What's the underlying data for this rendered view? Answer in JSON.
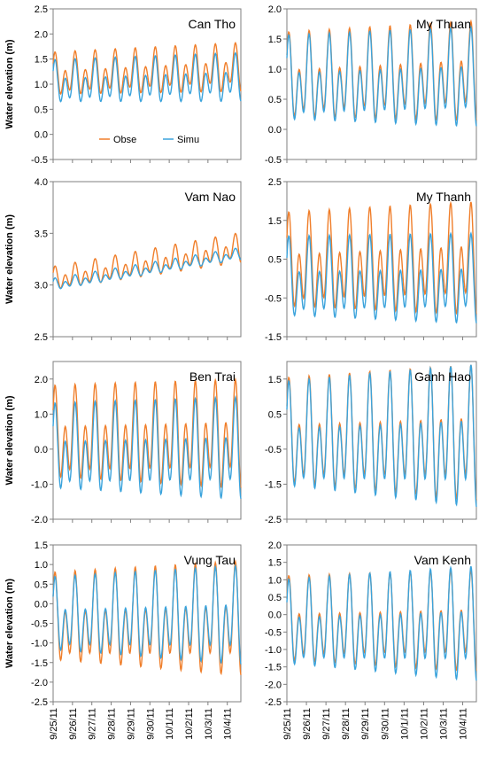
{
  "colors": {
    "obse": "#F07E2A",
    "simu": "#3AA3DC",
    "frame": "#7f7f7f"
  },
  "x_tick_labels": [
    "9/25/11",
    "9/26/11",
    "9/27/11",
    "9/28/11",
    "9/29/11",
    "9/30/11",
    "10/1/11",
    "10/2/11",
    "10/3/11",
    "10/4/11"
  ],
  "y_axis_label": "Water elevation (m)",
  "chart_data": [
    {
      "type": "line",
      "title": "Can Tho",
      "ylabel": "Water elevation (m)",
      "ylim": [
        -0.5,
        2.5
      ],
      "yticks": [
        "2.5",
        "2.0",
        "1.5",
        "1.0",
        "0.5",
        "0.0",
        "-0.5"
      ],
      "legend": "inside-bottom-left",
      "series": [
        {
          "name": "Obse",
          "mean_start": 1.15,
          "mean_end": 1.3,
          "amp_start": 0.45,
          "amp_end": 0.5
        },
        {
          "name": "Simu",
          "mean_start": 1.0,
          "mean_end": 1.1,
          "amp_start": 0.45,
          "amp_end": 0.5
        }
      ]
    },
    {
      "type": "line",
      "title": "My Thuan",
      "ylabel": "",
      "ylim": [
        -0.5,
        2.0
      ],
      "yticks": [
        "2.0",
        "1.5",
        "1.0",
        "0.5",
        "0.0",
        "-0.5"
      ],
      "series": [
        {
          "name": "Obse",
          "mean_start": 0.8,
          "mean_end": 0.9,
          "amp_start": 0.75,
          "amp_end": 0.85
        },
        {
          "name": "Simu",
          "mean_start": 0.75,
          "mean_end": 0.8,
          "amp_start": 0.75,
          "amp_end": 0.85
        }
      ]
    },
    {
      "type": "line",
      "title": "Vam Nao",
      "ylabel": "Water elevation (m)",
      "ylim": [
        2.5,
        4.0
      ],
      "yticks": [
        "4.0",
        "3.5",
        "3.0",
        "2.5"
      ],
      "series": [
        {
          "name": "Obse",
          "mean_start": 3.05,
          "mean_end": 3.35,
          "amp_start": 0.12,
          "amp_end": 0.15
        },
        {
          "name": "Simu",
          "mean_start": 3.0,
          "mean_end": 3.3,
          "amp_start": 0.06,
          "amp_end": 0.06
        }
      ]
    },
    {
      "type": "line",
      "title": "My Thanh",
      "ylabel": "",
      "ylim": [
        -1.5,
        2.5
      ],
      "yticks": [
        "2.5",
        "1.5",
        "0.5",
        "-0.5",
        "-1.5"
      ],
      "series": [
        {
          "name": "Obse",
          "mean_start": 0.3,
          "mean_end": 0.4,
          "amp_start": 1.3,
          "amp_end": 1.5
        },
        {
          "name": "Simu",
          "mean_start": -0.1,
          "mean_end": -0.1,
          "amp_start": 1.1,
          "amp_end": 1.2
        }
      ]
    },
    {
      "type": "line",
      "title": "Ben Trai",
      "ylabel": "Water elevation (m)",
      "ylim": [
        -2.0,
        2.5
      ],
      "yticks": [
        "2.0",
        "1.0",
        "0.0",
        "-1.0",
        "-2.0"
      ],
      "series": [
        {
          "name": "Obse",
          "mean_start": 0.3,
          "mean_end": 0.3,
          "amp_start": 1.4,
          "amp_end": 1.6
        },
        {
          "name": "Simu",
          "mean_start": -0.1,
          "mean_end": -0.1,
          "amp_start": 1.3,
          "amp_end": 1.5
        }
      ]
    },
    {
      "type": "line",
      "title": "Ganh Hao",
      "ylabel": "",
      "ylim": [
        -2.5,
        2.0
      ],
      "yticks": [
        "1.5",
        "0.5",
        "-0.5",
        "-1.5",
        "-2.5"
      ],
      "series": [
        {
          "name": "Obse",
          "mean_start": -0.2,
          "mean_end": -0.2,
          "amp_start": 1.6,
          "amp_end": 2.0
        },
        {
          "name": "Simu",
          "mean_start": -0.3,
          "mean_end": -0.3,
          "amp_start": 1.6,
          "amp_end": 2.1
        }
      ]
    },
    {
      "type": "line",
      "title": "Vung Tau",
      "ylabel": "Water elevation (m)",
      "ylim": [
        -2.5,
        1.5
      ],
      "yticks": [
        "1.5",
        "1.0",
        "0.5",
        "0.0",
        "-0.5",
        "-1.0",
        "-1.5",
        "-2.0",
        "-2.5"
      ],
      "series": [
        {
          "name": "Obse",
          "mean_start": -0.5,
          "mean_end": -0.5,
          "amp_start": 1.2,
          "amp_end": 1.5
        },
        {
          "name": "Simu",
          "mean_start": -0.4,
          "mean_end": -0.4,
          "amp_start": 1.0,
          "amp_end": 1.3
        }
      ]
    },
    {
      "type": "line",
      "title": "Vam Kenh",
      "ylabel": "",
      "ylim": [
        -2.5,
        2.0
      ],
      "yticks": [
        "2.0",
        "1.5",
        "1.0",
        "0.5",
        "0.0",
        "-0.5",
        "-1.0",
        "-1.5",
        "-2.0",
        "-2.5"
      ],
      "series": [
        {
          "name": "Obse",
          "mean_start": -0.3,
          "mean_end": -0.3,
          "amp_start": 1.3,
          "amp_end": 1.5
        },
        {
          "name": "Simu",
          "mean_start": -0.4,
          "mean_end": -0.4,
          "amp_start": 1.3,
          "amp_end": 1.7
        }
      ]
    }
  ]
}
